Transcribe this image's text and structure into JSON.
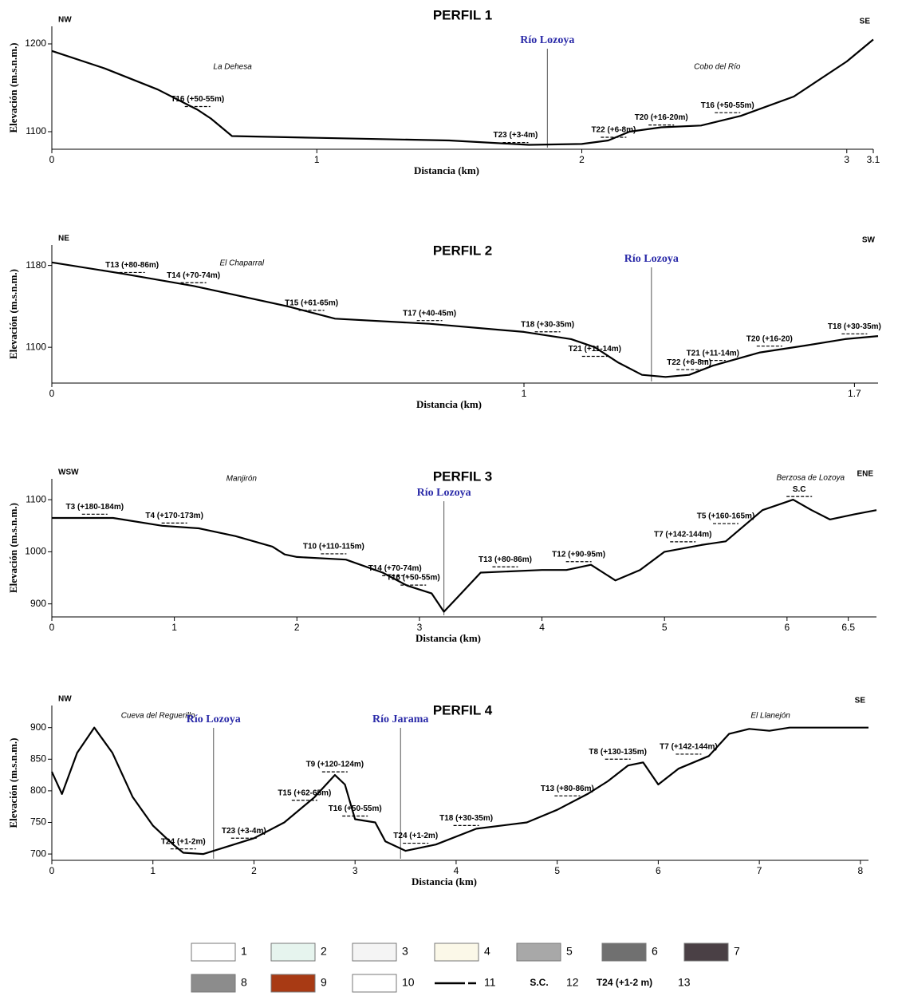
{
  "chart_data": [
    {
      "type": "line",
      "title": "PERFIL 1",
      "xlabel": "Distancia (km)",
      "ylabel": "Elevación (m.s.n.m.)",
      "left_label": "NW",
      "right_label": "SE",
      "places": [
        "La Dehesa",
        "Cobo del Río"
      ],
      "x": [
        0,
        0.2,
        0.4,
        0.55,
        0.6,
        0.68,
        1.0,
        1.5,
        1.8,
        2.0,
        2.1,
        2.18,
        2.3,
        2.45,
        2.6,
        2.8,
        3.0,
        3.1
      ],
      "values": [
        1192,
        1172,
        1148,
        1125,
        1115,
        1095,
        1093,
        1090,
        1085,
        1086,
        1090,
        1100,
        1105,
        1107,
        1118,
        1140,
        1180,
        1205
      ],
      "color": "#000000",
      "xlim": [
        0,
        3.1
      ],
      "ylim": [
        1080,
        1220
      ],
      "xticks": [
        0,
        1,
        2,
        3,
        3.1
      ],
      "yticks": [
        1100,
        1200
      ],
      "terraces": [
        {
          "label": "T16 (+50-55m)",
          "x": 0.55,
          "y": 1125
        },
        {
          "label": "T23 (+3-4m)",
          "x": 1.75,
          "y": 1084
        },
        {
          "label": "T22 (+6-8m)",
          "x": 2.12,
          "y": 1090
        },
        {
          "label": "T20 (+16-20m)",
          "x": 2.3,
          "y": 1104
        },
        {
          "label": "T16 (+50-55m)",
          "x": 2.55,
          "y": 1118
        }
      ],
      "rivers": [
        {
          "name": "Río Lozoya",
          "x": 1.87
        }
      ]
    },
    {
      "type": "line",
      "title": "PERFIL 2",
      "xlabel": "Distancia (km)",
      "ylabel": "Elevación (m.s.n.m.)",
      "left_label": "NE",
      "right_label": "SW",
      "places": [
        "El Chaparral"
      ],
      "x": [
        0,
        0.15,
        0.3,
        0.5,
        0.6,
        0.8,
        1.0,
        1.1,
        1.15,
        1.2,
        1.25,
        1.3,
        1.35,
        1.4,
        1.5,
        1.6,
        1.68,
        1.75
      ],
      "values": [
        1183,
        1172,
        1160,
        1140,
        1128,
        1123,
        1115,
        1108,
        1100,
        1085,
        1073,
        1071,
        1073,
        1082,
        1095,
        1102,
        1108,
        1111
      ],
      "color": "#000000",
      "xlim": [
        0,
        1.75
      ],
      "ylim": [
        1065,
        1200
      ],
      "xticks": [
        0,
        1,
        1.7
      ],
      "yticks": [
        1100,
        1180
      ],
      "terraces": [
        {
          "label": "T13 (+80-86m)",
          "x": 0.17,
          "y": 1170
        },
        {
          "label": "T14 (+70-74m)",
          "x": 0.3,
          "y": 1160
        },
        {
          "label": "T15 (+61-65m)",
          "x": 0.55,
          "y": 1133
        },
        {
          "label": "T17 (+40-45m)",
          "x": 0.8,
          "y": 1123
        },
        {
          "label": "T18 (+30-35m)",
          "x": 1.05,
          "y": 1112
        },
        {
          "label": "T21 (+11-14m)",
          "x": 1.15,
          "y": 1088
        },
        {
          "label": "T22 (+6-8m)",
          "x": 1.35,
          "y": 1075
        },
        {
          "label": "T21 (+11-14m)",
          "x": 1.4,
          "y": 1084
        },
        {
          "label": "T20 (+16-20)",
          "x": 1.52,
          "y": 1098
        },
        {
          "label": "T18 (+30-35m)",
          "x": 1.7,
          "y": 1110
        }
      ],
      "rivers": [
        {
          "name": "Río Lozoya",
          "x": 1.27
        }
      ]
    },
    {
      "type": "line",
      "title": "PERFIL 3",
      "xlabel": "Distancia (km)",
      "ylabel": "Elevación (m.s.n.m.)",
      "left_label": "WSW",
      "right_label": "ENE",
      "places": [
        "Manjirón",
        "Berzosa de Lozoya"
      ],
      "x": [
        0,
        0.5,
        0.9,
        1.2,
        1.5,
        1.8,
        1.9,
        2.0,
        2.4,
        2.7,
        2.9,
        3.1,
        3.2,
        3.3,
        3.5,
        4.0,
        4.2,
        4.4,
        4.6,
        4.8,
        5.0,
        5.3,
        5.5,
        5.8,
        6.05,
        6.2,
        6.35,
        6.55,
        6.73
      ],
      "values": [
        1065,
        1065,
        1050,
        1045,
        1030,
        1010,
        995,
        990,
        985,
        960,
        935,
        920,
        885,
        910,
        960,
        965,
        965,
        975,
        945,
        965,
        1000,
        1013,
        1020,
        1080,
        1100,
        1080,
        1062,
        1072,
        1080
      ],
      "color": "#000000",
      "xlim": [
        0,
        6.73
      ],
      "ylim": [
        875,
        1140
      ],
      "xticks": [
        0,
        1,
        2,
        3,
        4,
        5,
        6,
        6.5
      ],
      "yticks": [
        900,
        1000,
        1100
      ],
      "terraces": [
        {
          "label": "T3 (+180-184m)",
          "x": 0.35,
          "y": 1066
        },
        {
          "label": "T4 (+170-173m)",
          "x": 1.0,
          "y": 1049
        },
        {
          "label": "T10 (+110-115m)",
          "x": 2.3,
          "y": 990
        },
        {
          "label": "T14 (+70-74m)",
          "x": 2.8,
          "y": 948
        },
        {
          "label": "T16 (+50-55m)",
          "x": 2.95,
          "y": 930
        },
        {
          "label": "T13 (+80-86m)",
          "x": 3.7,
          "y": 965
        },
        {
          "label": "T12 (+90-95m)",
          "x": 4.3,
          "y": 975
        },
        {
          "label": "T7 (+142-144m)",
          "x": 5.15,
          "y": 1013
        },
        {
          "label": "T5 (+160-165m)",
          "x": 5.5,
          "y": 1048
        },
        {
          "label": "S.C",
          "x": 6.1,
          "y": 1100
        }
      ],
      "rivers": [
        {
          "name": "Río Lozoya",
          "x": 3.2
        }
      ]
    },
    {
      "type": "line",
      "title": "PERFIL 4",
      "xlabel": "Distancia (km)",
      "ylabel": "Elevación (m.s.n.m.)",
      "left_label": "NW",
      "right_label": "SE",
      "places": [
        "Cueva del Reguerillo",
        "El Llanejón"
      ],
      "x": [
        0,
        0.1,
        0.25,
        0.42,
        0.6,
        0.8,
        1.0,
        1.2,
        1.3,
        1.5,
        1.7,
        2.0,
        2.3,
        2.6,
        2.8,
        2.9,
        3.0,
        3.2,
        3.3,
        3.5,
        3.8,
        4.2,
        4.7,
        5.0,
        5.3,
        5.5,
        5.7,
        5.85,
        6.0,
        6.2,
        6.5,
        6.7,
        6.9,
        7.1,
        7.3,
        8.08
      ],
      "values": [
        830,
        795,
        860,
        900,
        860,
        790,
        745,
        715,
        702,
        700,
        710,
        725,
        750,
        790,
        825,
        810,
        755,
        750,
        720,
        705,
        715,
        740,
        750,
        770,
        795,
        815,
        840,
        845,
        810,
        835,
        855,
        890,
        898,
        895,
        900,
        900
      ],
      "color": "#000000",
      "xlim": [
        0,
        8.08
      ],
      "ylim": [
        690,
        935
      ],
      "xticks": [
        0,
        1,
        2,
        3,
        4,
        5,
        6,
        7,
        8
      ],
      "yticks": [
        700,
        750,
        800,
        850,
        900
      ],
      "terraces": [
        {
          "label": "T24 (+1-2m)",
          "x": 1.3,
          "y": 703
        },
        {
          "label": "T23 (+3-4m)",
          "x": 1.9,
          "y": 720
        },
        {
          "label": "T15 (+62-65m)",
          "x": 2.5,
          "y": 780
        },
        {
          "label": "T9 (+120-124m)",
          "x": 2.8,
          "y": 825
        },
        {
          "label": "T16 (+50-55m)",
          "x": 3.0,
          "y": 755
        },
        {
          "label": "T24 (+1-2m)",
          "x": 3.6,
          "y": 712
        },
        {
          "label": "T18 (+30-35m)",
          "x": 4.1,
          "y": 740
        },
        {
          "label": "T13 (+80-86m)",
          "x": 5.1,
          "y": 787
        },
        {
          "label": "T8 (+130-135m)",
          "x": 5.6,
          "y": 845
        },
        {
          "label": "T7 (+142-144m)",
          "x": 6.3,
          "y": 853
        }
      ],
      "rivers": [
        {
          "name": "Río Lozoya",
          "x": 1.6
        },
        {
          "name": "Río Jarama",
          "x": 3.45
        }
      ]
    }
  ],
  "legend": {
    "items": [
      {
        "label": "1",
        "color": "#ffffff"
      },
      {
        "label": "2",
        "color": "#e6f4ee"
      },
      {
        "label": "3",
        "color": "#f4f4f4"
      },
      {
        "label": "4",
        "color": "#fbf8e8"
      },
      {
        "label": "5",
        "color": "#a8a8a8"
      },
      {
        "label": "6",
        "color": "#707070"
      },
      {
        "label": "7",
        "color": "#4a4045"
      },
      {
        "label": "8",
        "color": "#8c8c8c"
      },
      {
        "label": "9",
        "color": "#a83a14"
      },
      {
        "label": "10",
        "color": "#ffffff"
      },
      {
        "label": "11",
        "color": "#000000"
      },
      {
        "label": "12",
        "symbol": "S.C."
      },
      {
        "label": "13",
        "symbol": "T24 (+1-2 m)"
      }
    ]
  }
}
